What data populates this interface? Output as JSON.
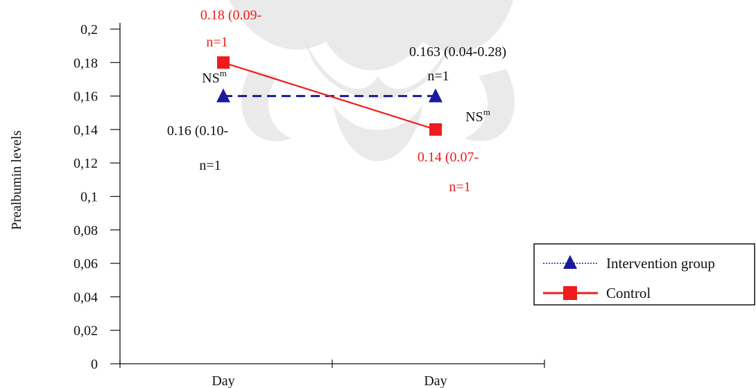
{
  "chart_data": {
    "type": "line",
    "categories": [
      "Day",
      "Day"
    ],
    "xlabel": "",
    "ylabel": "Prealbumin levels",
    "ylim": [
      0,
      0.2
    ],
    "yticks": [
      "0",
      "0,02",
      "0,04",
      "0,06",
      "0,08",
      "0,1",
      "0,12",
      "0,14",
      "0,16",
      "0,18",
      "0,2"
    ],
    "grid": false,
    "legend_position": "right",
    "series": [
      {
        "name": "Intervention group",
        "values": [
          0.16,
          0.16
        ],
        "color": "#1a1a9c",
        "line_style": "dashed",
        "marker": "triangle"
      },
      {
        "name": "Control",
        "values": [
          0.18,
          0.14
        ],
        "color": "#ee1c1c",
        "line_style": "solid",
        "marker": "square"
      }
    ],
    "annotations": [
      {
        "id": "ctrl-d1-value",
        "text": "0.18 (0.09-",
        "color": "#ee1c1c"
      },
      {
        "id": "ctrl-d1-n",
        "text": "n=1",
        "color": "#ee1c1c"
      },
      {
        "id": "int-d2-value",
        "text": "0.163 (0.04-0.28)",
        "color": "#111111"
      },
      {
        "id": "int-d2-n",
        "text": "n=1",
        "color": "#111111"
      },
      {
        "id": "int-d1-value",
        "text": "0.16 (0.10-",
        "color": "#111111"
      },
      {
        "id": "int-d1-n",
        "text": "n=1",
        "color": "#111111"
      },
      {
        "id": "ctrl-d2-value",
        "text": "0.14 (0.07-",
        "color": "#ee1c1c"
      },
      {
        "id": "ctrl-d2-n",
        "text": "n=1",
        "color": "#ee1c1c"
      },
      {
        "id": "ns-day1",
        "text": "NS",
        "sup": "m",
        "color": "#111111"
      },
      {
        "id": "ns-day2",
        "text": "NS",
        "sup": "m",
        "color": "#111111"
      }
    ]
  }
}
